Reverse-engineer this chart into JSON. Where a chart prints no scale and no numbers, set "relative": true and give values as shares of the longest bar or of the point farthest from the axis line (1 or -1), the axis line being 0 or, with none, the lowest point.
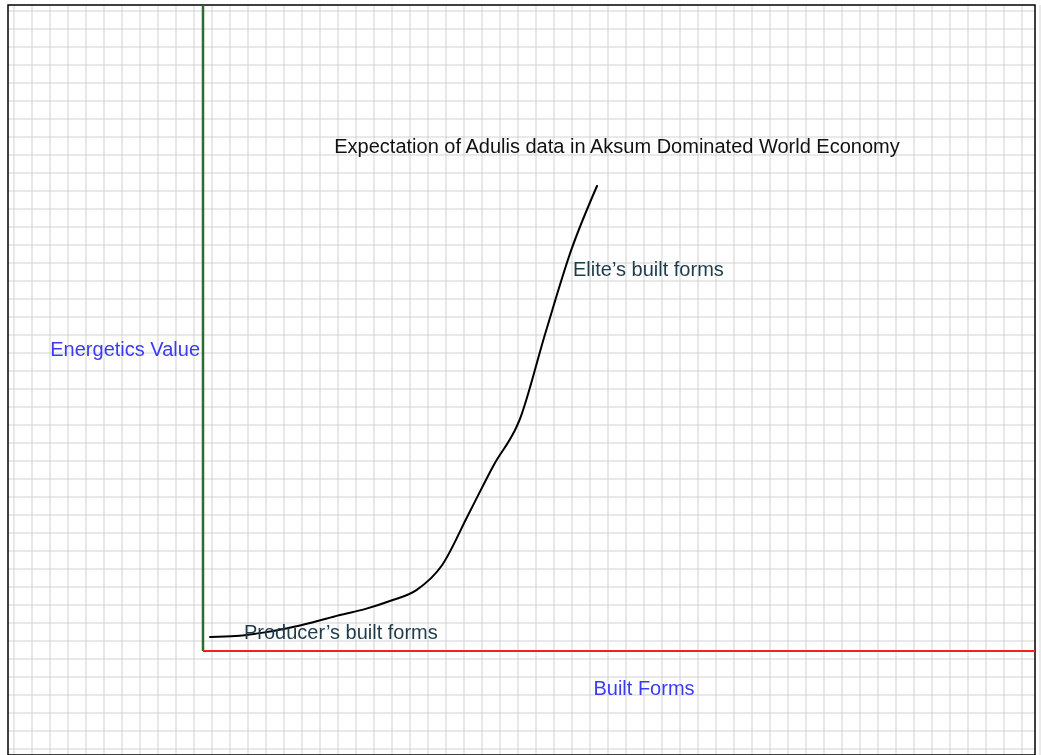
{
  "chart_data": {
    "type": "line",
    "title": "Expectation of Adulis data in Aksum Dominated World Economy",
    "xlabel": "Built Forms",
    "ylabel": "Energetics Value",
    "relative": true,
    "grid": true,
    "line_style": "solid",
    "categories": [
      null,
      null,
      null,
      null,
      null,
      null,
      null,
      null,
      null,
      null,
      null,
      null,
      null,
      null,
      null,
      null
    ],
    "series": [
      {
        "color": "#000000",
        "values": [
          0.03,
          0.032,
          0.039,
          0.049,
          0.062,
          0.077,
          0.09,
          0.108,
          0.131,
          0.185,
          0.292,
          0.4,
          0.497,
          0.684,
          0.862,
          1.0
        ]
      }
    ],
    "annotations": [
      "Producer’s built forms",
      "Elite’s built forms"
    ]
  }
}
